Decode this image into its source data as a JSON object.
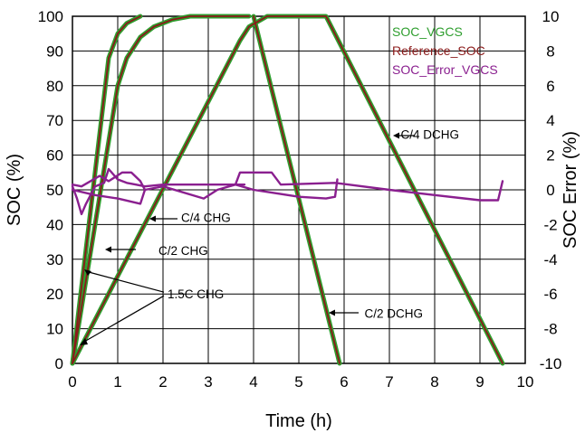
{
  "chart_data": {
    "type": "line",
    "title": "",
    "xlabel": "Time (h)",
    "ylabel": "SOC (%)",
    "y2label": "SOC Error (%)",
    "xlim": [
      0,
      10
    ],
    "ylim": [
      0,
      100
    ],
    "y2lim": [
      -10,
      10
    ],
    "grid": true,
    "x_ticks": [
      "0",
      "1",
      "2",
      "3",
      "4",
      "5",
      "6",
      "7",
      "8",
      "9",
      "10"
    ],
    "y_ticks": [
      "0",
      "10",
      "20",
      "30",
      "40",
      "50",
      "60",
      "70",
      "80",
      "90",
      "100"
    ],
    "y2_ticks": [
      "-10",
      "-8",
      "-6",
      "-4",
      "-2",
      "0",
      "2",
      "4",
      "6",
      "8",
      "10"
    ],
    "legend": [
      "SOC_VGCS",
      "Reference_SOC",
      "SOC_Error_VGCS"
    ],
    "legend_position": "top-right",
    "colors": {
      "SOC_VGCS": "#2e9e2e",
      "Reference_SOC": "#8b1a1a",
      "SOC_Error_VGCS": "#8a1f8f"
    },
    "series": [
      {
        "name": "SOC_VGCS",
        "axis": "left",
        "segments": [
          [
            [
              0,
              0
            ],
            [
              0.8,
              88
            ],
            [
              1.0,
              95
            ],
            [
              1.2,
              98
            ],
            [
              1.5,
              100
            ]
          ],
          [
            [
              0,
              0
            ],
            [
              1.0,
              80
            ],
            [
              1.2,
              88
            ],
            [
              1.5,
              94
            ],
            [
              1.8,
              97
            ],
            [
              2.2,
              99
            ],
            [
              2.6,
              100
            ],
            [
              3.9,
              100
            ]
          ],
          [
            [
              0,
              0
            ],
            [
              3.5,
              88
            ],
            [
              3.7,
              93
            ],
            [
              3.9,
              97
            ],
            [
              4.3,
              100
            ],
            [
              5.6,
              100
            ],
            [
              9.5,
              0
            ]
          ],
          [
            [
              4.0,
              100
            ],
            [
              5.9,
              0
            ]
          ]
        ]
      },
      {
        "name": "Reference_SOC",
        "axis": "left",
        "segments": [
          [
            [
              0,
              0
            ],
            [
              0.8,
              88
            ],
            [
              1.0,
              95
            ],
            [
              1.2,
              98
            ],
            [
              1.5,
              100
            ]
          ],
          [
            [
              0,
              0
            ],
            [
              1.0,
              80
            ],
            [
              1.2,
              88
            ],
            [
              1.5,
              94
            ],
            [
              1.8,
              97
            ],
            [
              2.2,
              99
            ],
            [
              2.6,
              100
            ],
            [
              3.9,
              100
            ]
          ],
          [
            [
              0,
              0
            ],
            [
              3.5,
              88
            ],
            [
              3.7,
              93
            ],
            [
              3.9,
              97
            ],
            [
              4.3,
              100
            ],
            [
              5.6,
              100
            ],
            [
              9.5,
              0
            ]
          ],
          [
            [
              4.0,
              100
            ],
            [
              5.9,
              0
            ]
          ]
        ]
      },
      {
        "name": "SOC_Error_VGCS",
        "axis": "right",
        "segments": [
          [
            [
              0,
              0.2
            ],
            [
              0.1,
              -0.5
            ],
            [
              0.2,
              -1.4
            ],
            [
              0.3,
              -0.8
            ],
            [
              0.5,
              0.2
            ],
            [
              0.7,
              0.4
            ],
            [
              0.8,
              1.2
            ],
            [
              1.0,
              0.6
            ],
            [
              1.2,
              0.4
            ],
            [
              1.4,
              0.3
            ],
            [
              1.6,
              0.2
            ],
            [
              2.0,
              0.3
            ],
            [
              3.0,
              0.3
            ],
            [
              3.8,
              0.3
            ]
          ],
          [
            [
              0,
              0.3
            ],
            [
              0.2,
              0.2
            ],
            [
              0.6,
              0.8
            ],
            [
              0.8,
              0.5
            ],
            [
              1.1,
              1.0
            ],
            [
              1.3,
              1.0
            ],
            [
              1.5,
              0.5
            ],
            [
              1.6,
              0
            ]
          ],
          [
            [
              0,
              0
            ],
            [
              0.5,
              -0.3
            ],
            [
              1.0,
              -0.5
            ],
            [
              1.5,
              -0.8
            ],
            [
              1.6,
              0
            ],
            [
              2.0,
              0.2
            ],
            [
              2.9,
              -0.5
            ],
            [
              3.2,
              0
            ],
            [
              3.6,
              0.3
            ],
            [
              4.0,
              0
            ],
            [
              4.5,
              -0.2
            ],
            [
              5.0,
              -0.4
            ],
            [
              5.6,
              -0.5
            ],
            [
              5.8,
              -0.4
            ],
            [
              5.85,
              0.6
            ]
          ],
          [
            [
              3.6,
              0.3
            ],
            [
              3.7,
              1.0
            ],
            [
              4.4,
              1.0
            ],
            [
              4.6,
              0.3
            ],
            [
              5.8,
              0.4
            ],
            [
              7.0,
              0
            ],
            [
              8.0,
              -0.3
            ],
            [
              9.0,
              -0.6
            ],
            [
              9.4,
              -0.6
            ],
            [
              9.5,
              0.5
            ]
          ]
        ]
      }
    ],
    "annotations": [
      {
        "text": "C/4 DCHG",
        "x": 7.25,
        "y": 66
      },
      {
        "text": "C/4 CHG",
        "x": 2.4,
        "y": 42
      },
      {
        "text": "C/2 CHG",
        "x": 1.9,
        "y": 32.5
      },
      {
        "text": "1.5C CHG",
        "x": 2.1,
        "y": 20
      },
      {
        "text": "C/2 DCHG",
        "x": 6.45,
        "y": 14.5
      }
    ]
  }
}
